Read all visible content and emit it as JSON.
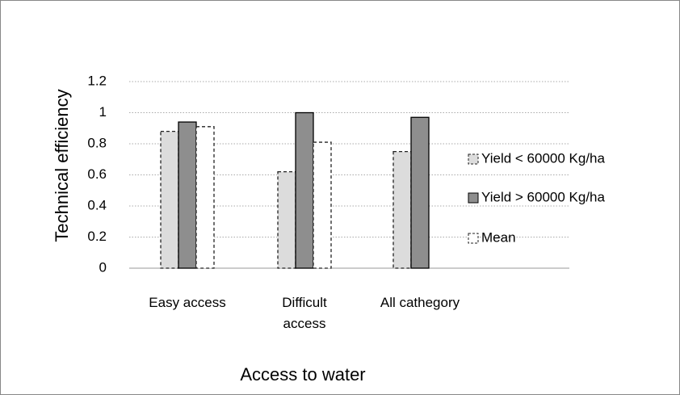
{
  "chart_data": {
    "type": "bar",
    "x_label": "Access to water",
    "y_label": "Technical efficiency",
    "categories": [
      "Easy access",
      "Difficult access",
      "All cathegory"
    ],
    "series": [
      {
        "name": "Yield < 60000 Kg/ha",
        "color": "#dcdcdc",
        "values": [
          0.88,
          0.62,
          0.75
        ]
      },
      {
        "name": "Yield > 60000 Kg/ha",
        "color": "#8e8e8e",
        "values": [
          0.94,
          1.0,
          0.97
        ]
      },
      {
        "name": "Mean",
        "color": "#ffffff",
        "values": [
          0.91,
          0.81,
          null
        ]
      }
    ],
    "ylim": [
      0,
      1.2
    ],
    "yticks": [
      0,
      0.2,
      0.4,
      0.6,
      0.8,
      1,
      1.2
    ],
    "grid": true,
    "legend": "right"
  }
}
